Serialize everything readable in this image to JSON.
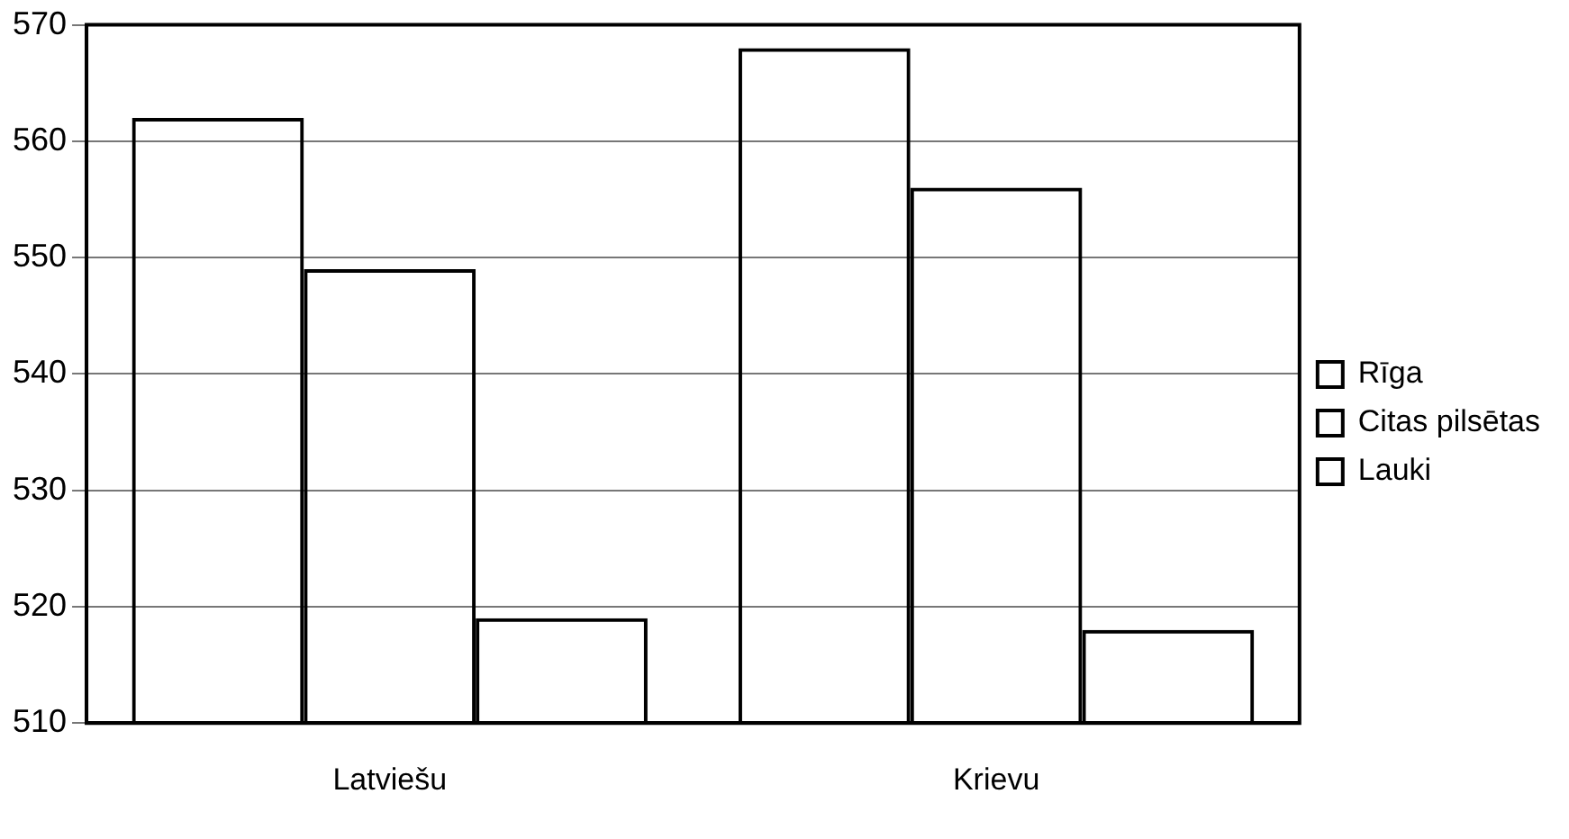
{
  "chart_data": {
    "type": "bar",
    "categories": [
      "Latviešu",
      "Krievu"
    ],
    "series": [
      {
        "name": "Rīga",
        "color": "#000000",
        "values": [
          562,
          568
        ]
      },
      {
        "name": "Citas pilsētas",
        "color": "#000000",
        "values": [
          549,
          556
        ]
      },
      {
        "name": "Lauki",
        "color": "#000000",
        "values": [
          519,
          518
        ]
      }
    ],
    "ylim": [
      510,
      570
    ],
    "yticks": [
      510,
      520,
      530,
      540,
      550,
      560,
      570
    ],
    "grid": "y",
    "legend": "right"
  }
}
